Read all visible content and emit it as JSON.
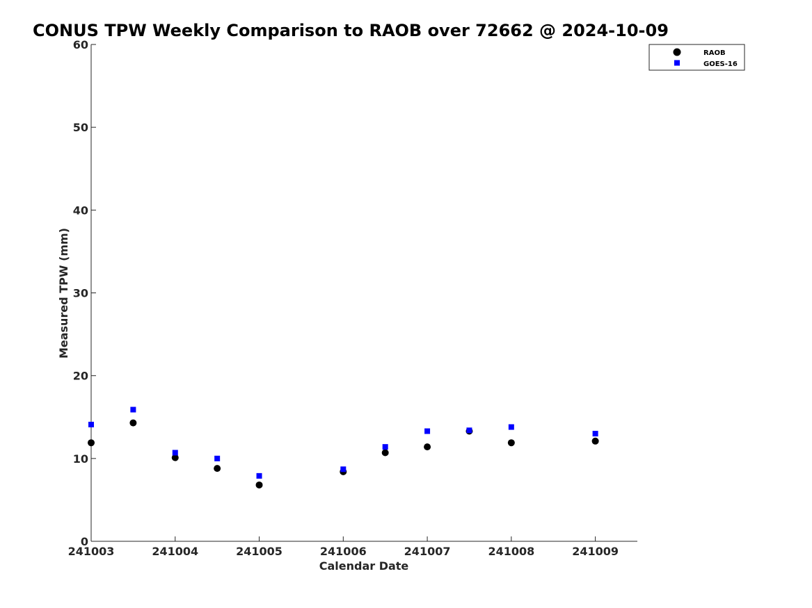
{
  "chart_data": {
    "type": "scatter",
    "title": "CONUS TPW Weekly Comparison to RAOB over 72662 @ 2024-10-09",
    "xlabel": "Calendar Date",
    "ylabel": "Measured TPW (mm)",
    "xlim": [
      0,
      6.5
    ],
    "ylim": [
      0,
      60
    ],
    "x_ticks": [
      {
        "value": 0,
        "label": "241003"
      },
      {
        "value": 1,
        "label": "241004"
      },
      {
        "value": 2,
        "label": "241005"
      },
      {
        "value": 3,
        "label": "241006"
      },
      {
        "value": 4,
        "label": "241007"
      },
      {
        "value": 5,
        "label": "241008"
      },
      {
        "value": 6,
        "label": "241009"
      }
    ],
    "y_ticks": [
      {
        "value": 0,
        "label": "0"
      },
      {
        "value": 10,
        "label": "10"
      },
      {
        "value": 20,
        "label": "20"
      },
      {
        "value": 30,
        "label": "30"
      },
      {
        "value": 40,
        "label": "40"
      },
      {
        "value": 50,
        "label": "50"
      },
      {
        "value": 60,
        "label": "60"
      }
    ],
    "legend_position": "top-right",
    "grid": false,
    "series": [
      {
        "name": "RAOB",
        "marker": "circle",
        "color": "#000000",
        "points": [
          {
            "x": 0,
            "y": 11.9
          },
          {
            "x": 0.5,
            "y": 14.3
          },
          {
            "x": 1,
            "y": 10.1
          },
          {
            "x": 1.5,
            "y": 8.8
          },
          {
            "x": 2,
            "y": 6.8
          },
          {
            "x": 3,
            "y": 8.4
          },
          {
            "x": 3.5,
            "y": 10.7
          },
          {
            "x": 4,
            "y": 11.4
          },
          {
            "x": 4.5,
            "y": 13.3
          },
          {
            "x": 5,
            "y": 11.9
          },
          {
            "x": 6,
            "y": 12.1
          }
        ]
      },
      {
        "name": "GOES-16",
        "marker": "square",
        "color": "#0000ff",
        "points": [
          {
            "x": 0,
            "y": 14.1
          },
          {
            "x": 0.5,
            "y": 15.9
          },
          {
            "x": 1,
            "y": 10.7
          },
          {
            "x": 1.5,
            "y": 10.0
          },
          {
            "x": 2,
            "y": 7.9
          },
          {
            "x": 3,
            "y": 8.7
          },
          {
            "x": 3.5,
            "y": 11.4
          },
          {
            "x": 4,
            "y": 13.3
          },
          {
            "x": 4.5,
            "y": 13.4
          },
          {
            "x": 5,
            "y": 13.8
          },
          {
            "x": 6,
            "y": 13.0
          }
        ]
      }
    ]
  }
}
